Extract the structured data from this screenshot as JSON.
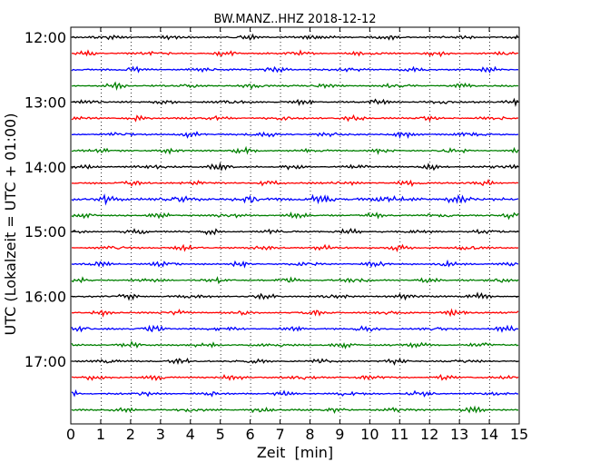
{
  "chart_data": {
    "type": "line",
    "title": "BW.MANZ..HHZ 2018-12-12",
    "xlabel": "Zeit  [min]",
    "ylabel": "UTC (Lokalzeit = UTC + 01:00)",
    "xlim": [
      0,
      15
    ],
    "x_ticks": [
      "0",
      "1",
      "2",
      "3",
      "4",
      "5",
      "6",
      "7",
      "8",
      "9",
      "10",
      "11",
      "12",
      "13",
      "14",
      "15"
    ],
    "y_tick_labels": [
      "12:00",
      "13:00",
      "14:00",
      "15:00",
      "16:00",
      "17:00"
    ],
    "grid": "vertical dotted at each minute",
    "row_start": "12:00",
    "row_interval_min": 15,
    "row_count": 24,
    "colors": [
      "#000000",
      "#ff0000",
      "#0000ff",
      "#008000"
    ],
    "series_description": "seismogram traces, one per 15-minute window, colors cycling black, red, blue, green"
  }
}
